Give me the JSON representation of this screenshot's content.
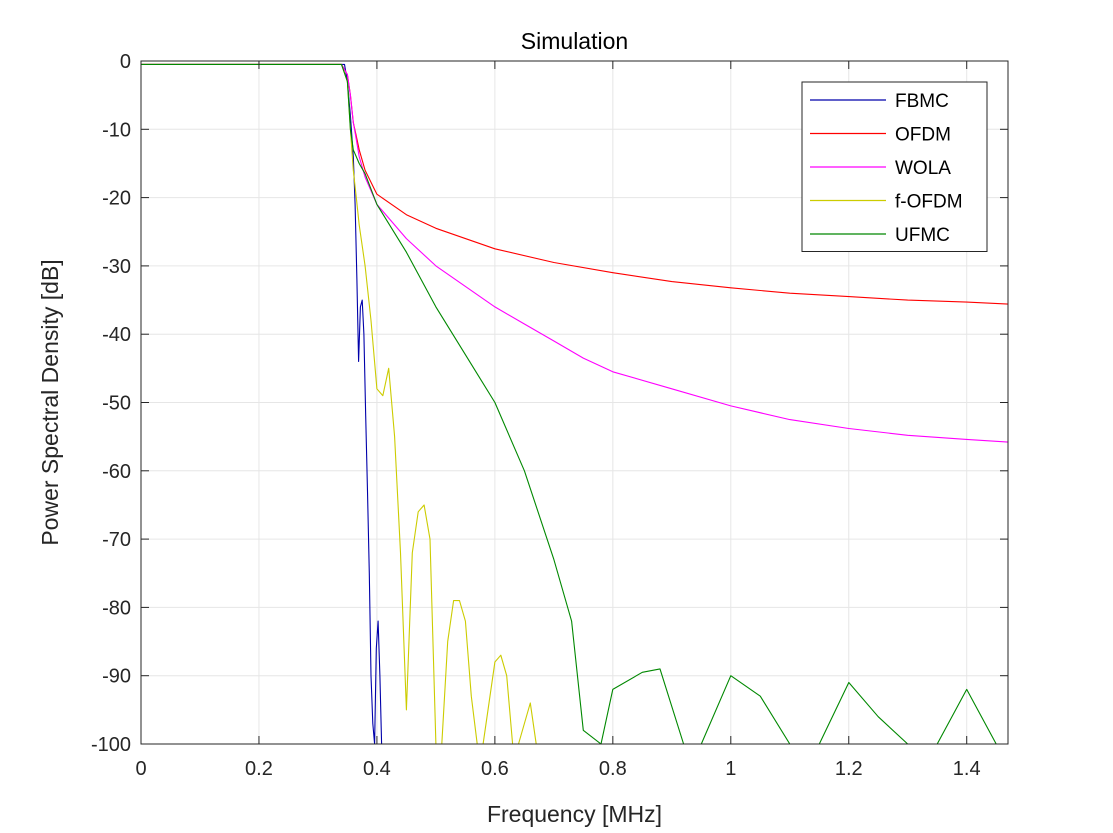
{
  "chart_data": {
    "type": "line",
    "title": "Simulation",
    "xlabel": "Frequency [MHz]",
    "ylabel": "Power Spectral Density [dB]",
    "xlim": [
      0,
      1.47
    ],
    "ylim": [
      -100,
      0
    ],
    "x_ticks": [
      0,
      0.2,
      0.4,
      0.6,
      0.8,
      1.0,
      1.2,
      1.4
    ],
    "x_tick_labels": [
      "0",
      "0.2",
      "0.4",
      "0.6",
      "0.8",
      "1",
      "1.2",
      "1.4"
    ],
    "y_ticks": [
      0,
      -10,
      -20,
      -30,
      -40,
      -50,
      -60,
      -70,
      -80,
      -90,
      -100
    ],
    "y_tick_labels": [
      "0",
      "-10",
      "-20",
      "-30",
      "-40",
      "-50",
      "-60",
      "-70",
      "-80",
      "-90",
      "-100"
    ],
    "grid": true,
    "legend_position": "top-right",
    "series": [
      {
        "name": "FBMC",
        "color": "#0000aa",
        "x": [
          0,
          0.1,
          0.2,
          0.3,
          0.345,
          0.35,
          0.355,
          0.36,
          0.363,
          0.366,
          0.369,
          0.372,
          0.375,
          0.378,
          0.381,
          0.384,
          0.387,
          0.39,
          0.393,
          0.396,
          0.399,
          0.402,
          0.405,
          0.408,
          0.41,
          0.412,
          0.415
        ],
        "values": [
          -0.5,
          -0.5,
          -0.5,
          -0.5,
          -0.5,
          -3,
          -8,
          -14,
          -21,
          -32,
          -44,
          -36,
          -35,
          -40,
          -52,
          -63,
          -75,
          -90,
          -97,
          -100,
          -86,
          -82,
          -90,
          -100,
          -100,
          -100,
          -100
        ]
      },
      {
        "name": "OFDM",
        "color": "#ff0000",
        "x": [
          0,
          0.34,
          0.35,
          0.355,
          0.36,
          0.365,
          0.37,
          0.38,
          0.4,
          0.45,
          0.5,
          0.6,
          0.7,
          0.8,
          0.9,
          1.0,
          1.1,
          1.2,
          1.3,
          1.4,
          1.47
        ],
        "values": [
          -0.5,
          -0.5,
          -2,
          -5,
          -9,
          -11,
          -13,
          -16,
          -19.5,
          -22.5,
          -24.5,
          -27.5,
          -29.5,
          -31,
          -32.3,
          -33.2,
          -34,
          -34.5,
          -35,
          -35.3,
          -35.6
        ]
      },
      {
        "name": "WOLA",
        "color": "#ff00ff",
        "x": [
          0,
          0.34,
          0.35,
          0.355,
          0.36,
          0.365,
          0.37,
          0.38,
          0.4,
          0.45,
          0.5,
          0.55,
          0.6,
          0.65,
          0.7,
          0.75,
          0.8,
          0.9,
          1.0,
          1.1,
          1.2,
          1.3,
          1.4,
          1.47
        ],
        "values": [
          -0.5,
          -0.5,
          -2,
          -5,
          -9,
          -11.5,
          -14,
          -17,
          -21,
          -26,
          -30,
          -33,
          -36,
          -38.5,
          -41,
          -43.5,
          -45.5,
          -48,
          -50.5,
          -52.5,
          -53.8,
          -54.8,
          -55.4,
          -55.8
        ]
      },
      {
        "name": "f-OFDM",
        "color": "#cccc00",
        "x": [
          0,
          0.34,
          0.35,
          0.355,
          0.36,
          0.365,
          0.37,
          0.38,
          0.39,
          0.4,
          0.41,
          0.42,
          0.43,
          0.44,
          0.45,
          0.46,
          0.47,
          0.48,
          0.49,
          0.5,
          0.51,
          0.52,
          0.53,
          0.54,
          0.55,
          0.56,
          0.57,
          0.58,
          0.59,
          0.6,
          0.61,
          0.62,
          0.63,
          0.64,
          0.65,
          0.66,
          0.67
        ],
        "values": [
          -0.5,
          -0.5,
          -3,
          -10,
          -16,
          -20,
          -24,
          -30,
          -38,
          -48,
          -49,
          -45,
          -55,
          -72,
          -95,
          -72,
          -66,
          -65,
          -70,
          -100,
          -100,
          -85,
          -79,
          -79,
          -82,
          -93,
          -100,
          -100,
          -94,
          -88,
          -87,
          -90,
          -100,
          -100,
          -97,
          -94,
          -100
        ]
      },
      {
        "name": "UFMC",
        "color": "#008800",
        "x": [
          0,
          0.34,
          0.35,
          0.355,
          0.36,
          0.37,
          0.38,
          0.4,
          0.45,
          0.5,
          0.55,
          0.6,
          0.65,
          0.7,
          0.73,
          0.75,
          0.78,
          0.8,
          0.85,
          0.88,
          0.92,
          0.95,
          1.0,
          1.05,
          1.1,
          1.15,
          1.2,
          1.25,
          1.3,
          1.35,
          1.4,
          1.45
        ],
        "values": [
          -0.5,
          -0.5,
          -3,
          -10,
          -13,
          -15,
          -16.5,
          -21,
          -28,
          -36,
          -43,
          -50,
          -60,
          -73,
          -82,
          -98,
          -100,
          -92,
          -89.5,
          -89,
          -100,
          -100,
          -90,
          -93,
          -100,
          -100,
          -91,
          -96,
          -100,
          -100,
          -92,
          -100
        ]
      }
    ]
  }
}
